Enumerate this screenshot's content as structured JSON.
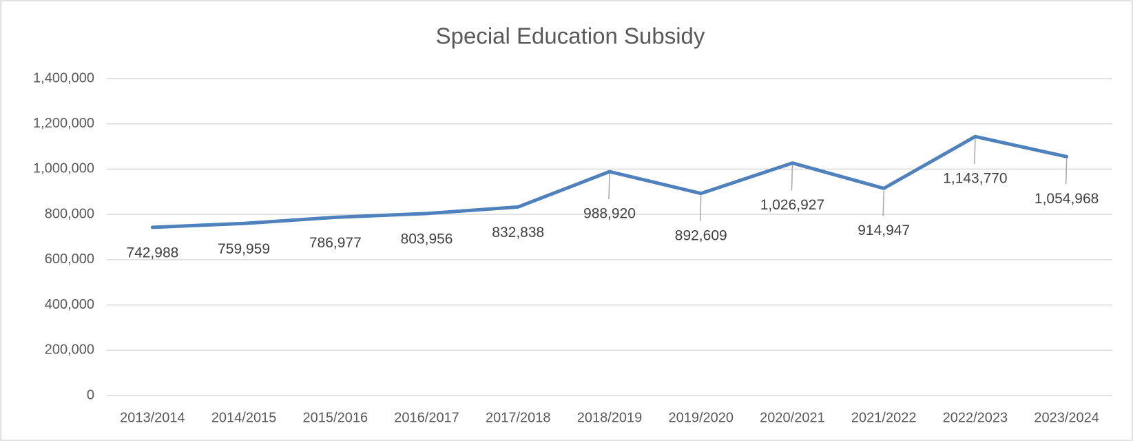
{
  "chart_data": {
    "type": "line",
    "title": "Special Education Subsidy",
    "categories": [
      "2013/2014",
      "2014/2015",
      "2015/2016",
      "2016/2017",
      "2017/2018",
      "2018/2019",
      "2019/2020",
      "2020/2021",
      "2021/2022",
      "2022/2023",
      "2023/2024"
    ],
    "series": [
      {
        "name": "Special Education Subsidy",
        "color": "#4f81bd",
        "values": [
          742988,
          759959,
          786977,
          803956,
          832838,
          988920,
          892609,
          1026927,
          914947,
          1143770,
          1054968
        ],
        "value_labels": [
          "742,988",
          "759,959",
          "786,977",
          "803,956",
          "832,838",
          "988,920",
          "892,609",
          "1,026,927",
          "914,947",
          "1,143,770",
          "1,054,968"
        ]
      }
    ],
    "ylim": [
      0,
      1400000
    ],
    "yticks": [
      0,
      {
        "value": 200000,
        "label": "200,000"
      },
      {
        "value": 400000,
        "label": "400,000"
      },
      {
        "value": 600000,
        "label": "600,000"
      },
      {
        "value": 800000,
        "label": "800,000"
      },
      {
        "value": 1000000,
        "label": "1,000,000"
      },
      {
        "value": 1200000,
        "label": "1,200,000"
      },
      {
        "value": 1400000,
        "label": "1,400,000"
      }
    ],
    "grid": true
  }
}
